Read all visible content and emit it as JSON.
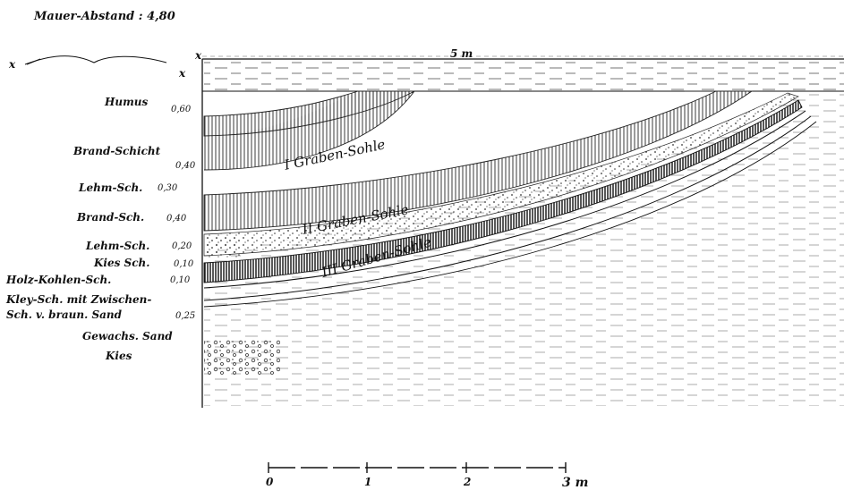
{
  "title": "Mauer-Abstand : 4,80",
  "top_measure": "5 m",
  "corner_marks": [
    "x",
    "x",
    "x"
  ],
  "layers": [
    {
      "name": "Humus",
      "thickness": "0,60"
    },
    {
      "name": "Brand-Schicht",
      "thickness": "0,40"
    },
    {
      "name": "Lehm-Sch.",
      "thickness": "0,30"
    },
    {
      "name": "Brand-Sch.",
      "thickness": "0,40"
    },
    {
      "name": "Lehm-Sch.",
      "thickness": "0,20"
    },
    {
      "name": "Kies Sch.",
      "thickness": "0,10"
    },
    {
      "name": "Holz-Kohlen-Sch.",
      "thickness": "0,10"
    },
    {
      "name": "Kley-Sch. mit Zwischen-",
      "thickness": ""
    },
    {
      "name": "Sch. v. braun. Sand",
      "thickness": "0,25"
    },
    {
      "name": "Gewachs. Sand",
      "thickness": ""
    },
    {
      "name": "Kies",
      "thickness": ""
    }
  ],
  "trench_soles": [
    "I Graben-Sohle",
    "II Graben-Sohle",
    "III Graben-Sohle"
  ],
  "scale": {
    "ticks": [
      "0",
      "1",
      "2",
      "3 m"
    ]
  }
}
